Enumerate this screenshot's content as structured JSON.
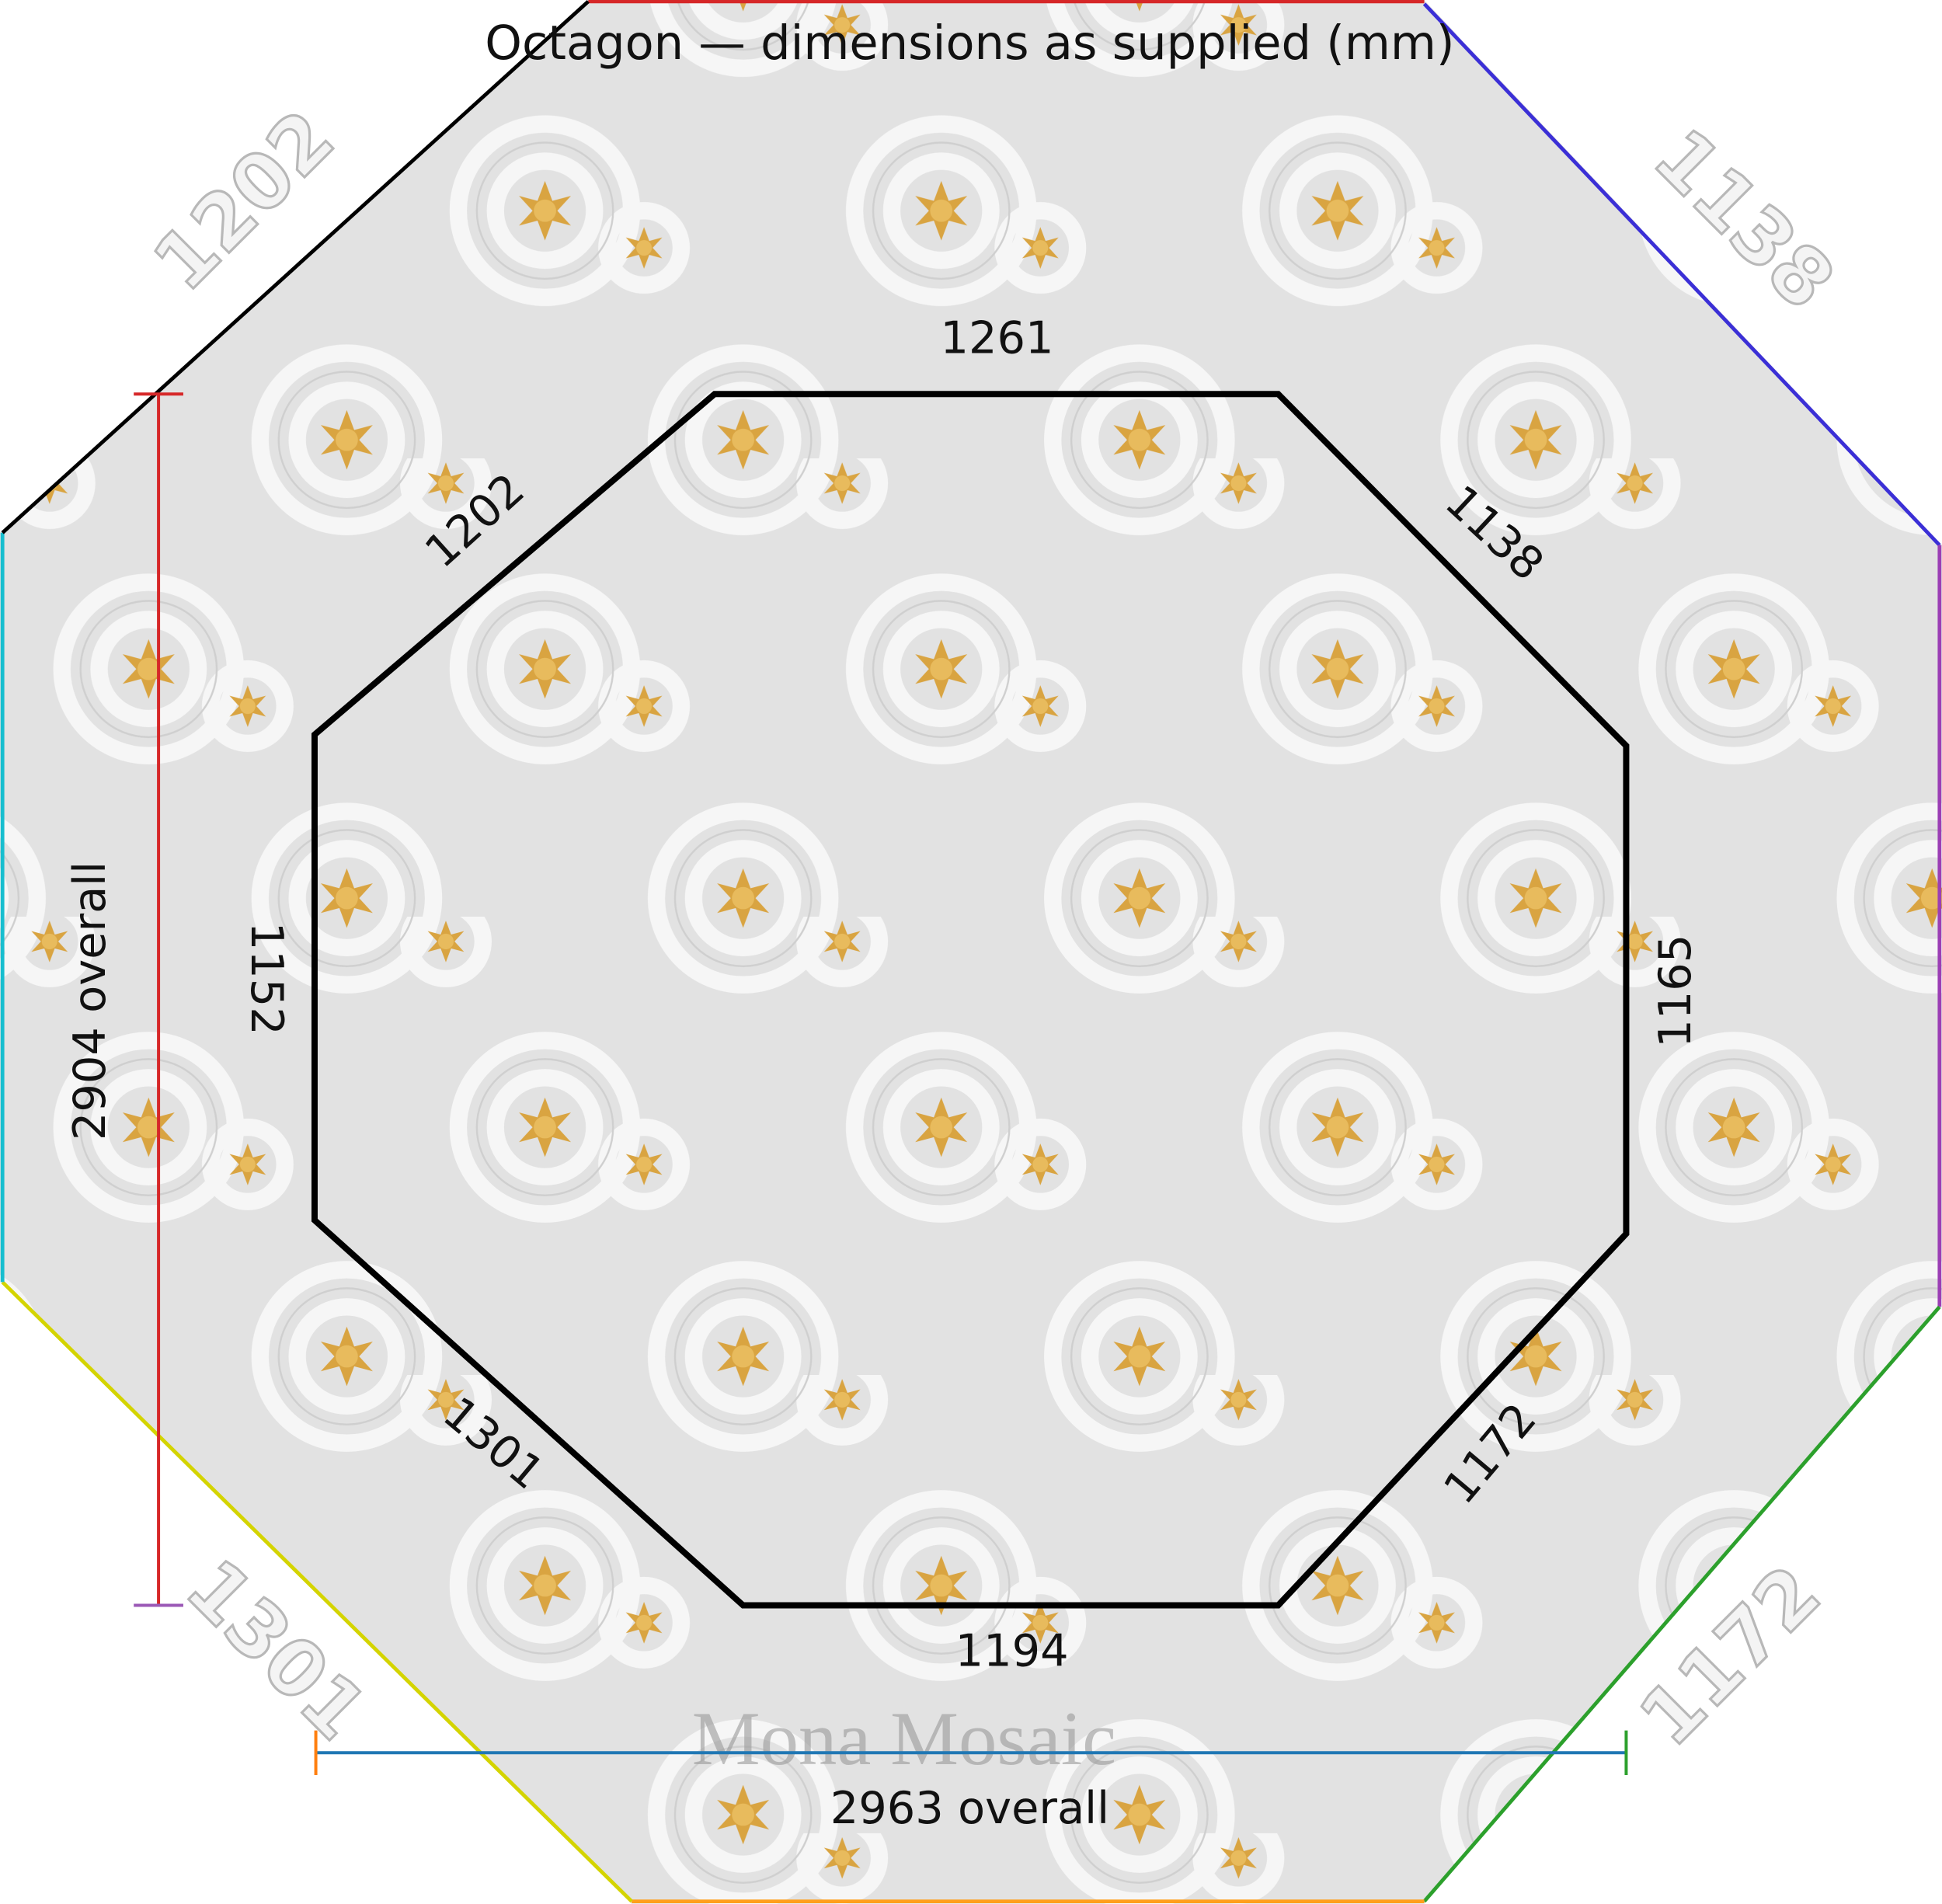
{
  "title": "Octagon — dimensions as supplied (mm)",
  "sides": [
    {
      "label": "1261"
    },
    {
      "label": "1138"
    },
    {
      "label": "1165"
    },
    {
      "label": "1172"
    },
    {
      "label": "1194"
    },
    {
      "label": "1301"
    },
    {
      "label": "1152"
    },
    {
      "label": "1202"
    }
  ],
  "overall_height": "2904 overall",
  "overall_width": "2963 overall",
  "watermark": "Mona Mosaic"
}
